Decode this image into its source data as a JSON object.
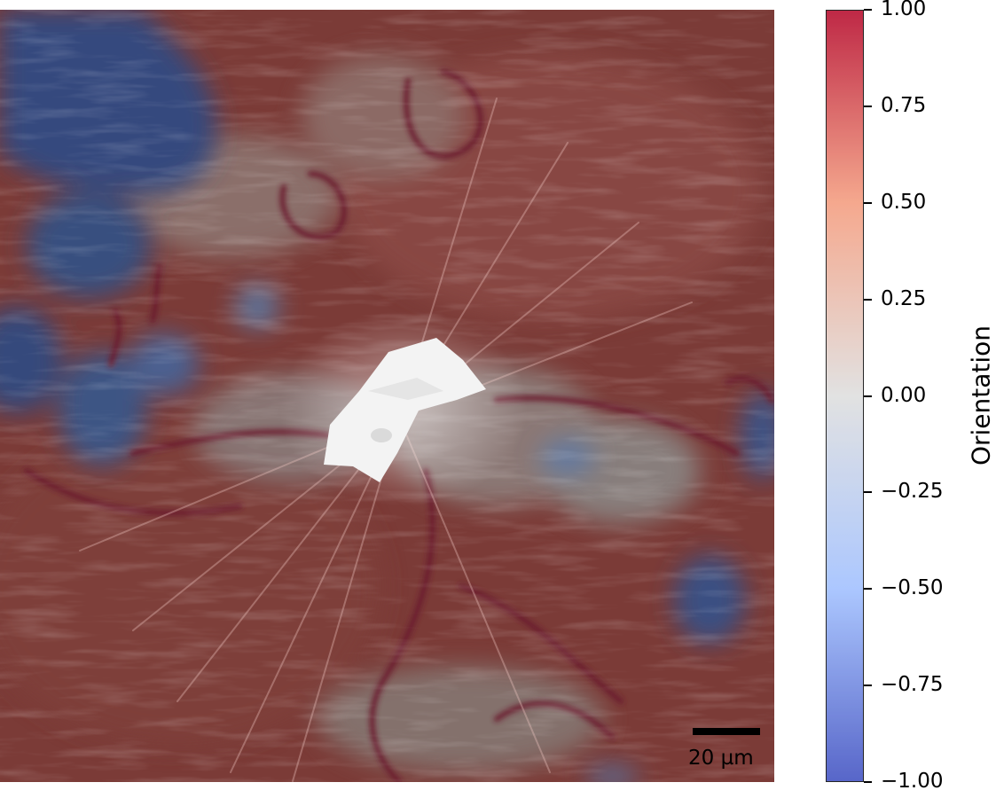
{
  "image": {
    "scalebar_label": "20 µm"
  },
  "colorbar": {
    "label": "Orientation",
    "range": [
      -1.0,
      1.0
    ],
    "ticks": [
      "1.00",
      "0.75",
      "0.50",
      "0.25",
      "0.00",
      "−0.25",
      "−0.50",
      "−0.75",
      "−1.00"
    ],
    "colors": {
      "top": "#b40426",
      "upper": "#f49a7b",
      "middle": "#dddddd",
      "lower": "#9ebeff",
      "bottom": "#3b4cc0"
    }
  }
}
